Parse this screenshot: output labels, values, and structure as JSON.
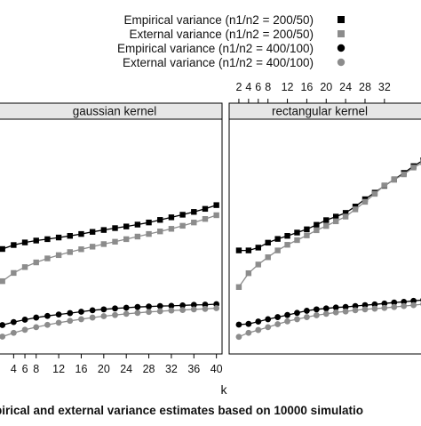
{
  "chart_data": {
    "type": "line",
    "title": "",
    "caption": "pirical and external variance estimates based on 10000 simulatio",
    "xlabel": "k",
    "ylabel": "",
    "legend": {
      "placement": "top",
      "entries": [
        {
          "label": "Empirical variance  (n1/n2 = 200/50)",
          "symbol": "square",
          "color": "#000000"
        },
        {
          "label": "External variance  (n1/n2 = 200/50)",
          "symbol": "square",
          "color": "#8c8c8c"
        },
        {
          "label": "Empirical variance  (n1/n2 = 400/100)",
          "symbol": "circle",
          "color": "#000000"
        },
        {
          "label": "External variance  (n1/n2 = 400/100)",
          "symbol": "circle",
          "color": "#8c8c8c"
        }
      ]
    },
    "xlim": [
      0,
      41
    ],
    "ylim": [
      0.0,
      1.0
    ],
    "panels": [
      {
        "name": "gaussian kernel",
        "tick_side": "bottom",
        "xticks": [
          4,
          6,
          8,
          12,
          16,
          20,
          24,
          28,
          32,
          36,
          40
        ],
        "x": [
          2,
          4,
          6,
          8,
          10,
          12,
          14,
          16,
          18,
          20,
          22,
          24,
          26,
          28,
          30,
          32,
          34,
          36,
          38,
          40
        ],
        "series": [
          {
            "values": [
              0.447,
              0.464,
              0.475,
              0.483,
              0.489,
              0.496,
              0.503,
              0.511,
              0.52,
              0.528,
              0.536,
              0.543,
              0.551,
              0.56,
              0.571,
              0.582,
              0.593,
              0.605,
              0.618,
              0.634
            ]
          },
          {
            "values": [
              0.31,
              0.345,
              0.37,
              0.39,
              0.407,
              0.421,
              0.434,
              0.446,
              0.457,
              0.468,
              0.478,
              0.489,
              0.5,
              0.511,
              0.522,
              0.533,
              0.546,
              0.56,
              0.575,
              0.591
            ]
          },
          {
            "values": [
              0.123,
              0.136,
              0.146,
              0.155,
              0.162,
              0.168,
              0.174,
              0.18,
              0.186,
              0.19,
              0.194,
              0.197,
              0.2,
              0.202,
              0.204,
              0.205,
              0.207,
              0.209,
              0.21,
              0.212
            ]
          },
          {
            "values": [
              0.074,
              0.09,
              0.103,
              0.114,
              0.124,
              0.133,
              0.141,
              0.148,
              0.155,
              0.161,
              0.166,
              0.171,
              0.175,
              0.179,
              0.182,
              0.185,
              0.187,
              0.19,
              0.192,
              0.195
            ]
          }
        ]
      },
      {
        "name": "rectangular kernel",
        "tick_side": "top",
        "xticks": [
          2,
          4,
          6,
          8,
          12,
          16,
          20,
          24,
          28,
          32
        ],
        "x": [
          2,
          4,
          6,
          8,
          10,
          12,
          14,
          16,
          18,
          20,
          22,
          24,
          26,
          28,
          30,
          32,
          34,
          36,
          38,
          40
        ],
        "series": [
          {
            "values": [
              0.441,
              0.441,
              0.453,
              0.474,
              0.49,
              0.503,
              0.517,
              0.531,
              0.55,
              0.57,
              0.585,
              0.601,
              0.628,
              0.659,
              0.687,
              0.716,
              0.743,
              0.771,
              0.8,
              0.825
            ]
          },
          {
            "values": [
              0.285,
              0.344,
              0.381,
              0.412,
              0.441,
              0.465,
              0.485,
              0.505,
              0.527,
              0.545,
              0.565,
              0.585,
              0.616,
              0.648,
              0.682,
              0.718,
              0.742,
              0.765,
              0.794,
              0.816
            ]
          },
          {
            "values": [
              0.125,
              0.128,
              0.138,
              0.148,
              0.157,
              0.166,
              0.175,
              0.184,
              0.19,
              0.194,
              0.198,
              0.2,
              0.204,
              0.208,
              0.211,
              0.215,
              0.219,
              0.222,
              0.226,
              0.23
            ]
          },
          {
            "values": [
              0.073,
              0.09,
              0.102,
              0.114,
              0.127,
              0.139,
              0.148,
              0.157,
              0.165,
              0.171,
              0.177,
              0.181,
              0.186,
              0.19,
              0.193,
              0.196,
              0.2,
              0.204,
              0.208,
              0.212
            ]
          }
        ]
      }
    ]
  }
}
